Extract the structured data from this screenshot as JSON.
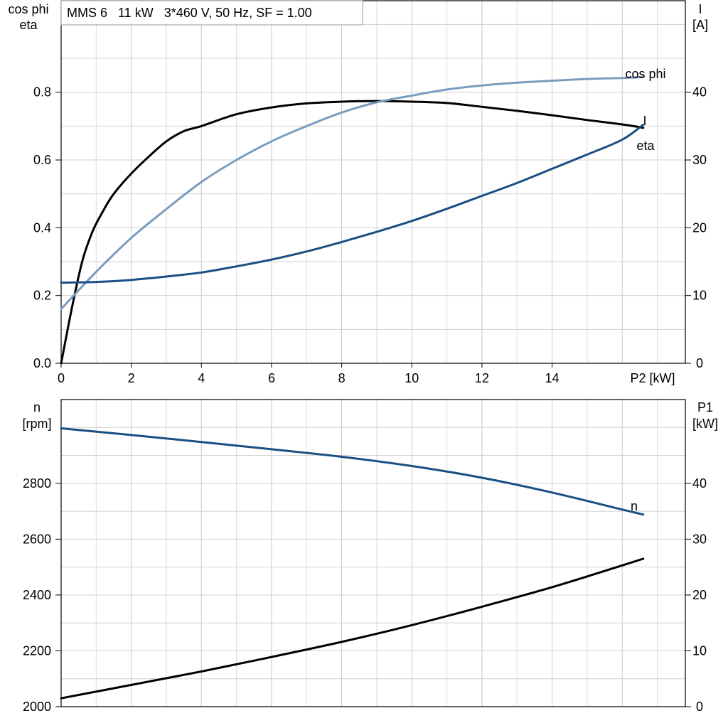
{
  "chart_data": [
    {
      "type": "line",
      "title": "MMS 6   11 kW   3*460 V, 50 Hz, SF = 1.00",
      "xlabel": "P2 [kW]",
      "x_ticks": [
        "0",
        "2",
        "4",
        "6",
        "8",
        "10",
        "12",
        "14"
      ],
      "xlim": [
        0,
        17.8
      ],
      "ylabel_left": [
        "cos phi",
        "eta"
      ],
      "ylabel_right": [
        "I",
        "[A]"
      ],
      "left_ticks": [
        "0.0",
        "0.2",
        "0.4",
        "0.6",
        "0.8"
      ],
      "right_ticks": [
        "0",
        "10",
        "20",
        "30",
        "40"
      ],
      "ylim_left": [
        0,
        1.07
      ],
      "ylim_right": [
        0,
        53.5
      ],
      "grid": true,
      "series": [
        {
          "name": "eta",
          "axis": "left",
          "color": "#000000",
          "x": [
            0,
            0.3,
            0.6,
            0.9,
            1.2,
            1.5,
            2,
            2.5,
            3,
            3.5,
            4,
            5,
            6,
            7,
            8,
            9,
            10,
            11,
            12,
            13,
            14,
            15,
            16,
            16.6
          ],
          "values": [
            0.0,
            0.16,
            0.3,
            0.39,
            0.45,
            0.5,
            0.56,
            0.61,
            0.655,
            0.685,
            0.7,
            0.735,
            0.755,
            0.767,
            0.772,
            0.774,
            0.772,
            0.768,
            0.757,
            0.745,
            0.732,
            0.718,
            0.705,
            0.695
          ]
        },
        {
          "name": "cos phi",
          "axis": "left",
          "color": "#7a9dbf",
          "x": [
            0,
            1,
            2,
            3,
            4,
            5,
            6,
            7,
            8,
            9,
            10,
            11,
            12,
            13,
            14,
            15,
            16,
            16.6
          ],
          "values": [
            0.16,
            0.27,
            0.37,
            0.455,
            0.535,
            0.6,
            0.655,
            0.7,
            0.74,
            0.77,
            0.79,
            0.808,
            0.82,
            0.828,
            0.834,
            0.839,
            0.842,
            0.845
          ]
        },
        {
          "name": "I",
          "axis": "right",
          "color": "#1a4f83",
          "x": [
            0,
            1,
            2,
            3,
            4,
            5,
            6,
            7,
            8,
            9,
            10,
            11,
            12,
            13,
            14,
            15,
            16,
            16.6
          ],
          "values": [
            11.9,
            12.0,
            12.3,
            12.8,
            13.4,
            14.3,
            15.3,
            16.5,
            17.9,
            19.4,
            21.0,
            22.8,
            24.7,
            26.6,
            28.7,
            30.8,
            33.0,
            35.2
          ]
        }
      ],
      "annotations": [
        {
          "text": "cos phi",
          "color": "#7a9dbf"
        },
        {
          "text": "I",
          "color": "#1a4f83"
        },
        {
          "text": "eta",
          "color": "#000000"
        }
      ]
    },
    {
      "type": "line",
      "xlim": [
        0,
        17.8
      ],
      "ylabel_left": [
        "n",
        "[rpm]"
      ],
      "ylabel_right": [
        "P1",
        "[kW]"
      ],
      "left_ticks": [
        "2000",
        "2200",
        "2400",
        "2600",
        "2800"
      ],
      "right_ticks": [
        "0",
        "10",
        "20",
        "30",
        "40"
      ],
      "ylim_left": [
        2000,
        3100
      ],
      "ylim_right": [
        0,
        55
      ],
      "grid": true,
      "series": [
        {
          "name": "n",
          "axis": "left",
          "color": "#1a4f83",
          "x": [
            0,
            2,
            4,
            6,
            8,
            10,
            12,
            14,
            16,
            16.6
          ],
          "values": [
            2997,
            2973,
            2948,
            2922,
            2895,
            2862,
            2820,
            2767,
            2706,
            2688
          ]
        },
        {
          "name": "P1",
          "axis": "right",
          "color": "#000000",
          "x": [
            0,
            2,
            4,
            6,
            8,
            10,
            12,
            14,
            16,
            16.6
          ],
          "values": [
            1.5,
            3.9,
            6.3,
            8.9,
            11.6,
            14.6,
            17.9,
            21.4,
            25.3,
            26.5
          ]
        }
      ],
      "annotations": [
        {
          "text": "n",
          "color": "#1a4f83"
        }
      ]
    }
  ]
}
